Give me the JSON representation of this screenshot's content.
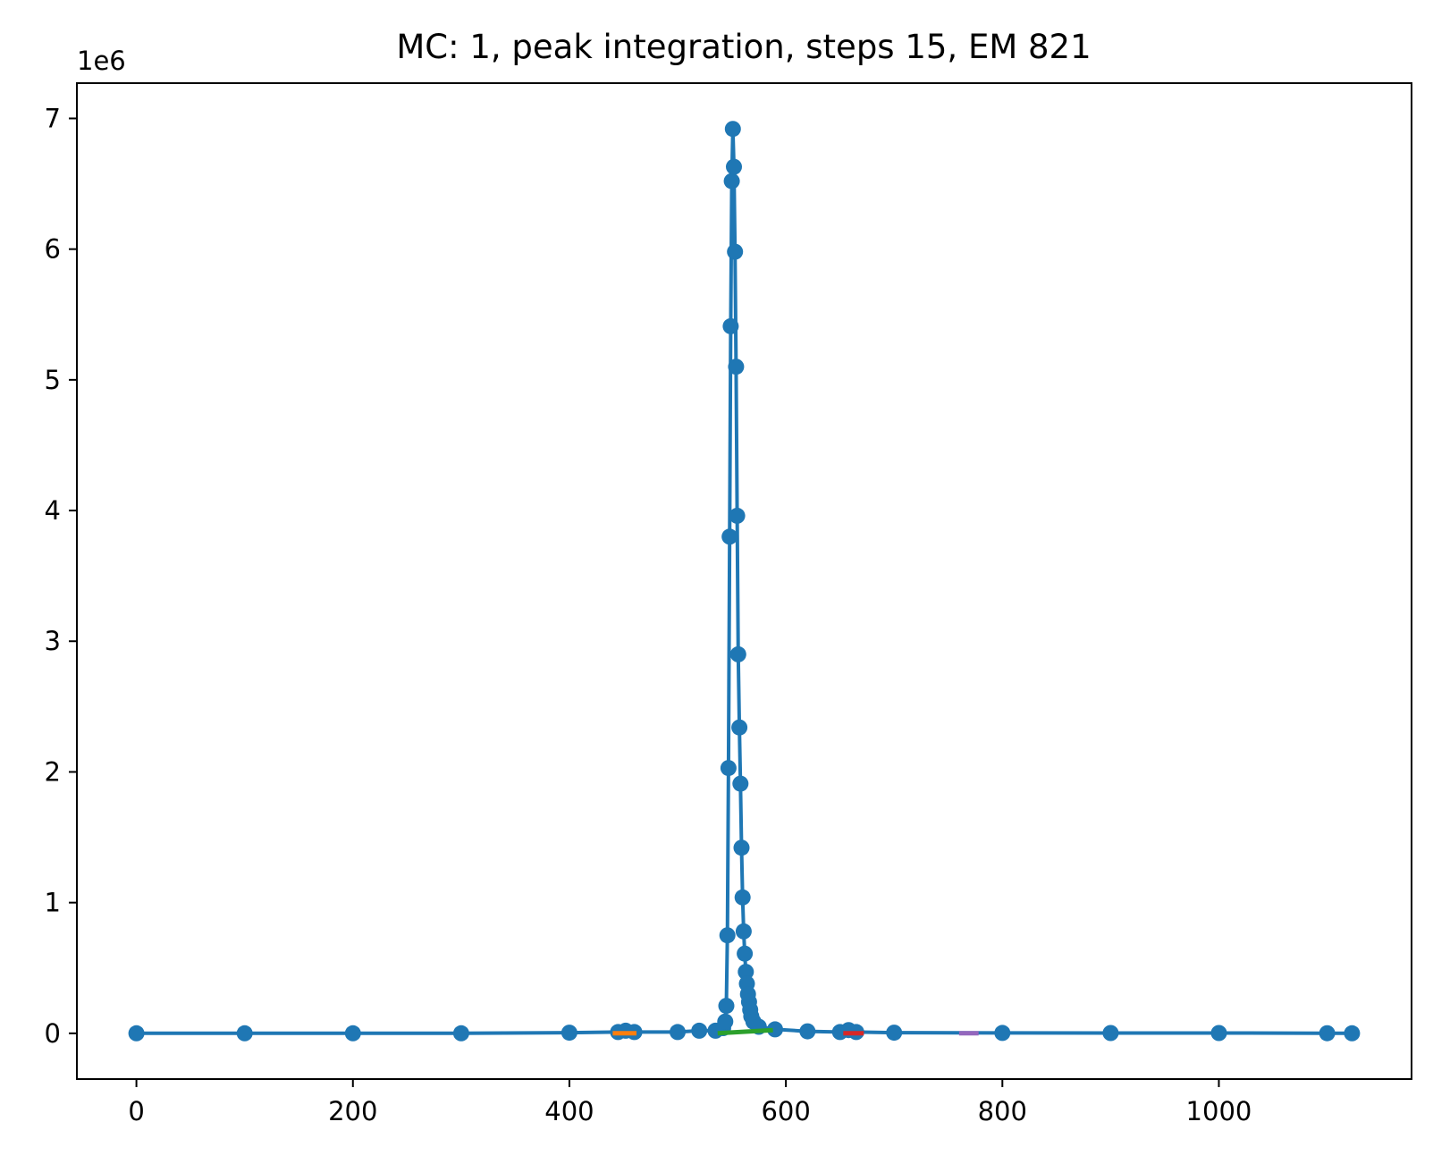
{
  "chart_data": {
    "type": "line",
    "title": "MC: 1, peak integration, steps 15, EM 821",
    "xlabel": "",
    "ylabel": "",
    "y_offset_label": "1e6",
    "xlim": [
      -55,
      1178
    ],
    "ylim": [
      -0.35,
      7.27
    ],
    "y_scale_factor": 1000000,
    "x_ticks": [
      0,
      200,
      400,
      600,
      800,
      1000
    ],
    "x_tick_labels": [
      "0",
      "200",
      "400",
      "600",
      "800",
      "1000"
    ],
    "y_ticks": [
      0,
      1,
      2,
      3,
      4,
      5,
      6,
      7
    ],
    "y_tick_labels": [
      "0",
      "1",
      "2",
      "3",
      "4",
      "5",
      "6",
      "7"
    ],
    "grid": false,
    "legend": "none",
    "series": [
      {
        "color": "#1f77b4",
        "style": "line-markers",
        "points": [
          [
            0,
            0
          ],
          [
            100,
            0
          ],
          [
            200,
            0
          ],
          [
            300,
            0
          ],
          [
            400,
            0.005
          ],
          [
            445,
            0.01
          ],
          [
            452,
            0.02
          ],
          [
            460,
            0.01
          ],
          [
            500,
            0.01
          ],
          [
            520,
            0.02
          ],
          [
            535,
            0.02
          ],
          [
            542,
            0.04
          ],
          [
            544,
            0.09
          ],
          [
            545,
            0.21
          ],
          [
            546,
            0.75
          ],
          [
            547,
            2.03
          ],
          [
            548,
            3.8
          ],
          [
            549,
            5.41
          ],
          [
            550,
            6.52
          ],
          [
            551,
            6.92
          ],
          [
            552,
            6.63
          ],
          [
            553,
            5.98
          ],
          [
            554,
            5.1
          ],
          [
            555,
            3.96
          ],
          [
            556,
            2.9
          ],
          [
            557,
            2.34
          ],
          [
            558,
            1.91
          ],
          [
            559,
            1.42
          ],
          [
            560,
            1.04
          ],
          [
            561,
            0.78
          ],
          [
            562,
            0.61
          ],
          [
            563,
            0.47
          ],
          [
            564,
            0.38
          ],
          [
            565,
            0.3
          ],
          [
            566,
            0.24
          ],
          [
            567,
            0.18
          ],
          [
            568,
            0.13
          ],
          [
            570,
            0.09
          ],
          [
            575,
            0.05
          ],
          [
            590,
            0.03
          ],
          [
            620,
            0.015
          ],
          [
            650,
            0.01
          ],
          [
            658,
            0.025
          ],
          [
            665,
            0.01
          ],
          [
            700,
            0.005
          ],
          [
            800,
            0.003
          ],
          [
            900,
            0.002
          ],
          [
            1000,
            0.002
          ],
          [
            1100,
            0.001
          ],
          [
            1123,
            0.0
          ]
        ]
      },
      {
        "color": "#ff7f0e",
        "style": "baseline",
        "points": [
          [
            440,
            0.0
          ],
          [
            462,
            0.0
          ]
        ]
      },
      {
        "color": "#2ca02c",
        "style": "baseline",
        "points": [
          [
            537,
            0.0
          ],
          [
            588,
            0.025
          ]
        ]
      },
      {
        "color": "#d62728",
        "style": "baseline",
        "points": [
          [
            653,
            0.0
          ],
          [
            672,
            0.0
          ]
        ]
      },
      {
        "color": "#9467bd",
        "style": "baseline",
        "points": [
          [
            760,
            0.0
          ],
          [
            778,
            0.0
          ]
        ]
      }
    ]
  }
}
